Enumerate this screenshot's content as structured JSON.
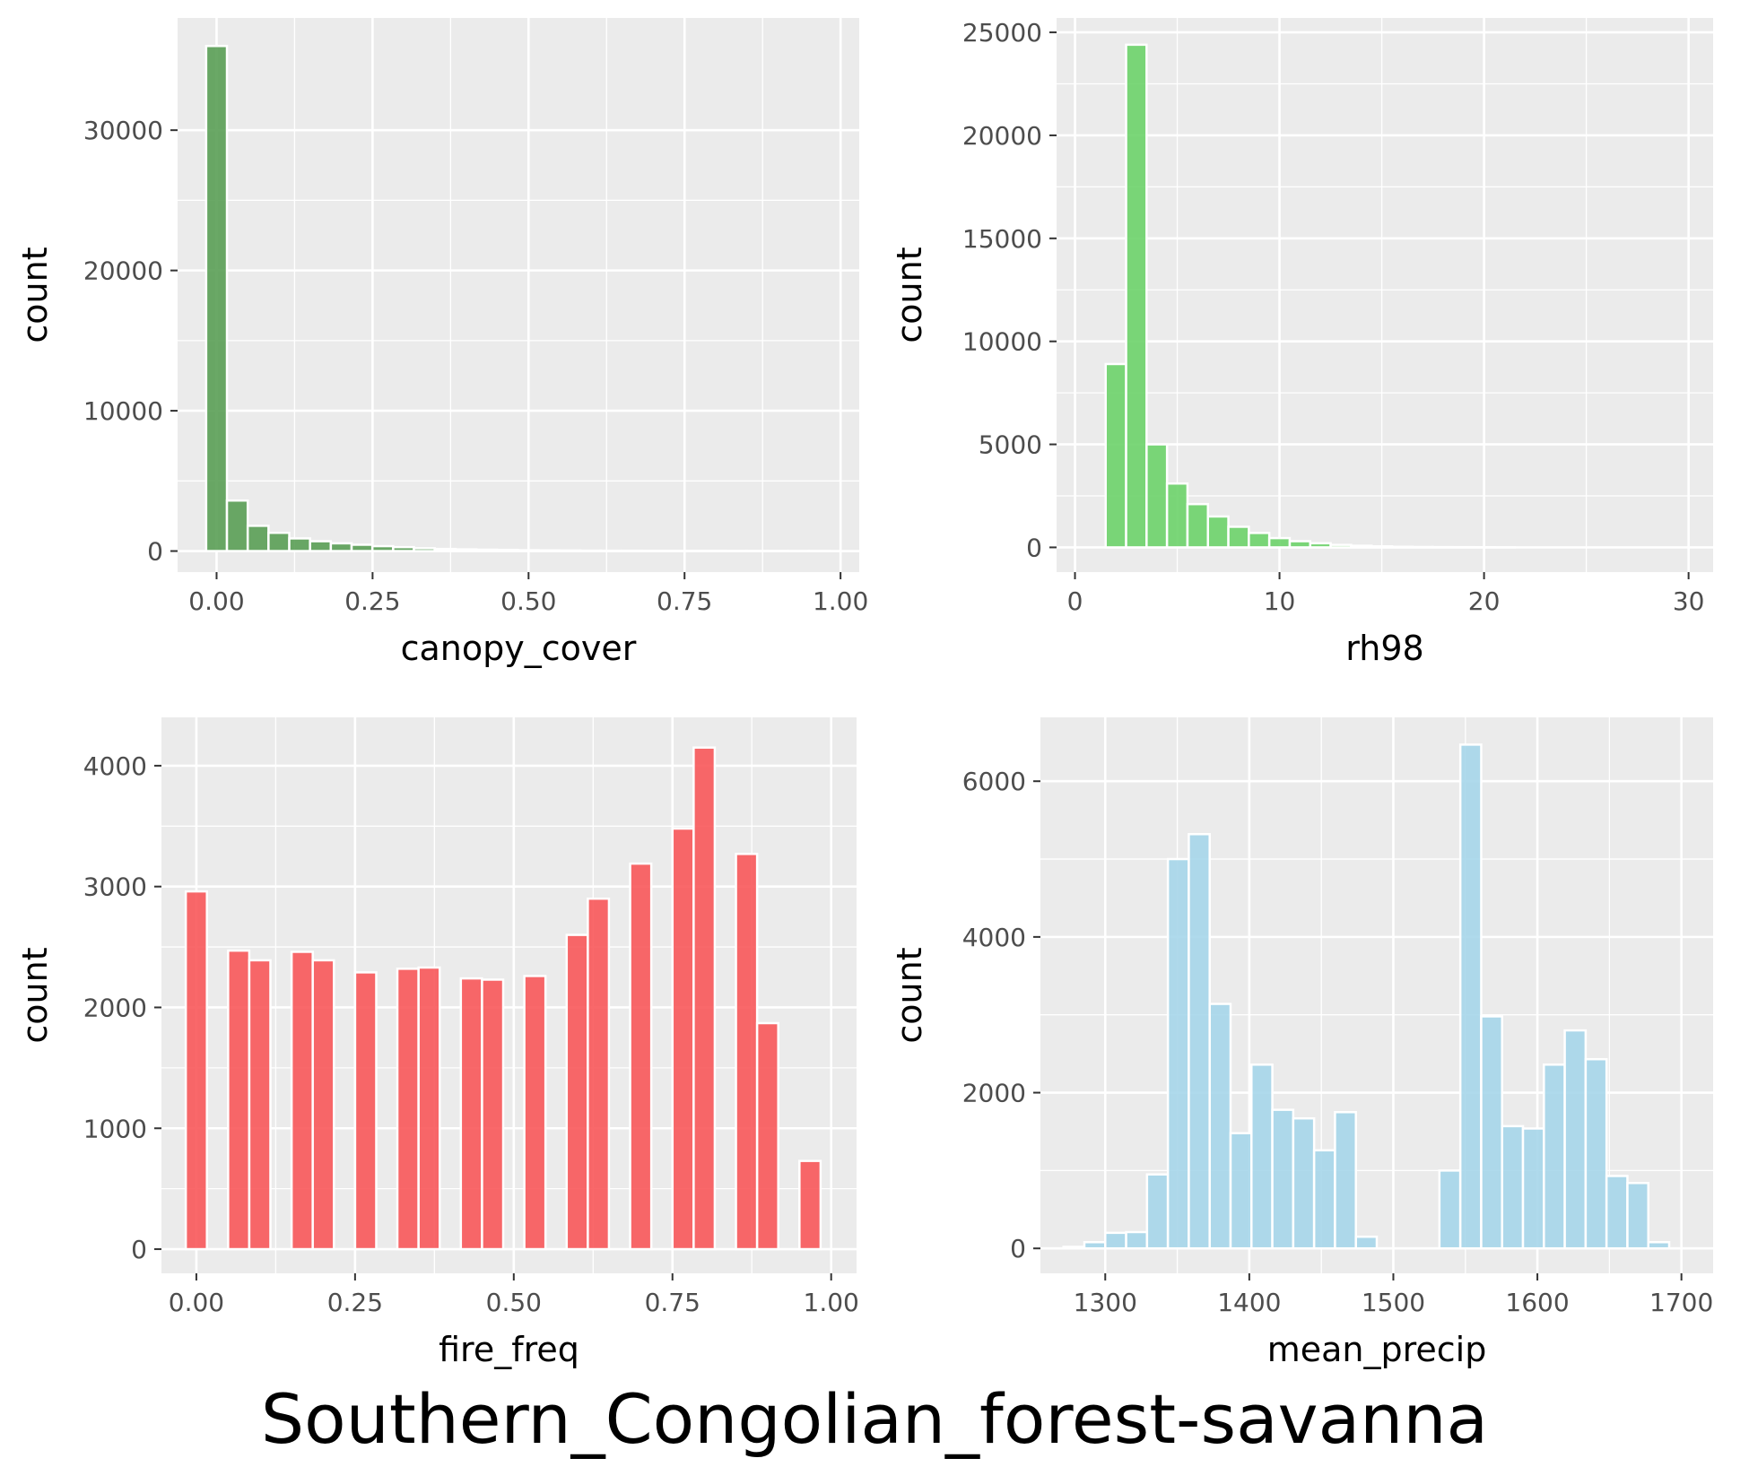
{
  "figure": {
    "title": "Southern_Congolian_forest-savanna",
    "panel_background": "#ebebeb",
    "grid_color": "#ffffff",
    "bar_outline": "#ffffff"
  },
  "chart_data": [
    {
      "type": "bar",
      "subtype": "histogram",
      "xlabel": "canopy_cover",
      "ylabel": "count",
      "xlim": [
        -0.0625,
        1.03
      ],
      "ylim": [
        -1500,
        38000
      ],
      "xticks": [
        0,
        0.25,
        0.5,
        0.75,
        1.0
      ],
      "xtick_labels": [
        "0.00",
        "0.25",
        "0.50",
        "0.75",
        "1.00"
      ],
      "yticks": [
        0,
        10000,
        20000,
        30000
      ],
      "ytick_labels": [
        "0",
        "10000",
        "20000",
        "30000"
      ],
      "color": "#5a9e55",
      "bin_width": 0.0333,
      "bin_start": -0.0167,
      "values": [
        36000,
        3600,
        1800,
        1300,
        900,
        700,
        550,
        450,
        350,
        280,
        200,
        150,
        120,
        100,
        80,
        60,
        50,
        40,
        30,
        25,
        20,
        15,
        12,
        10,
        8,
        6,
        5,
        4,
        3,
        2
      ]
    },
    {
      "type": "bar",
      "subtype": "histogram",
      "xlabel": "rh98",
      "ylabel": "count",
      "xlim": [
        -0.9,
        31.2
      ],
      "ylim": [
        -1200,
        25700
      ],
      "xticks": [
        0,
        10,
        20,
        30
      ],
      "xtick_labels": [
        "0",
        "10",
        "20",
        "30"
      ],
      "yticks": [
        0,
        5000,
        10000,
        15000,
        20000,
        25000
      ],
      "ytick_labels": [
        "0",
        "5000",
        "10000",
        "15000",
        "20000",
        "25000"
      ],
      "color": "#6dd36a",
      "bin_width": 1.0,
      "bin_start": 1.5,
      "values": [
        8900,
        24400,
        5000,
        3100,
        2100,
        1500,
        1000,
        700,
        450,
        300,
        200,
        120,
        80,
        50,
        30,
        20,
        15,
        10,
        5,
        3
      ]
    },
    {
      "type": "bar",
      "subtype": "histogram",
      "xlabel": "fire_freq",
      "ylabel": "count",
      "xlim": [
        -0.055,
        1.04
      ],
      "ylim": [
        -200,
        4400
      ],
      "xticks": [
        0,
        0.25,
        0.5,
        0.75,
        1.0
      ],
      "xtick_labels": [
        "0.00",
        "0.25",
        "0.50",
        "0.75",
        "1.00"
      ],
      "yticks": [
        0,
        1000,
        2000,
        3000,
        4000
      ],
      "ytick_labels": [
        "0",
        "1000",
        "2000",
        "3000",
        "4000"
      ],
      "color": "#f8585a",
      "bin_width": 0.0333,
      "bins": [
        {
          "x": 0.0,
          "count": 2960
        },
        {
          "x": 0.0667,
          "count": 2470
        },
        {
          "x": 0.1,
          "count": 2390
        },
        {
          "x": 0.1667,
          "count": 2460
        },
        {
          "x": 0.2,
          "count": 2390
        },
        {
          "x": 0.2667,
          "count": 2290
        },
        {
          "x": 0.3333,
          "count": 2320
        },
        {
          "x": 0.3667,
          "count": 2330
        },
        {
          "x": 0.4333,
          "count": 2240
        },
        {
          "x": 0.4667,
          "count": 2230
        },
        {
          "x": 0.5333,
          "count": 2260
        },
        {
          "x": 0.6,
          "count": 2600
        },
        {
          "x": 0.6333,
          "count": 2900
        },
        {
          "x": 0.7,
          "count": 3190
        },
        {
          "x": 0.7667,
          "count": 3480
        },
        {
          "x": 0.8,
          "count": 4150
        },
        {
          "x": 0.8667,
          "count": 3270
        },
        {
          "x": 0.9,
          "count": 1870
        },
        {
          "x": 0.9667,
          "count": 730
        }
      ]
    },
    {
      "type": "bar",
      "subtype": "histogram",
      "xlabel": "mean_precip",
      "ylabel": "count",
      "xlim": [
        1255,
        1722
      ],
      "ylim": [
        -320,
        6820
      ],
      "xticks": [
        1300,
        1400,
        1500,
        1600,
        1700
      ],
      "xtick_labels": [
        "1300",
        "1400",
        "1500",
        "1600",
        "1700"
      ],
      "yticks": [
        0,
        2000,
        4000,
        6000
      ],
      "ytick_labels": [
        "0",
        "2000",
        "4000",
        "6000"
      ],
      "color": "#a6d6ea",
      "bin_width": 14.5,
      "bin_start": 1271,
      "values": [
        20,
        80,
        200,
        210,
        950,
        5000,
        5320,
        3140,
        1480,
        2360,
        1780,
        1670,
        1260,
        1750,
        150,
        0,
        0,
        0,
        1000,
        6470,
        2980,
        1570,
        1540,
        2360,
        2800,
        2430,
        930,
        840,
        80,
        0
      ]
    }
  ]
}
